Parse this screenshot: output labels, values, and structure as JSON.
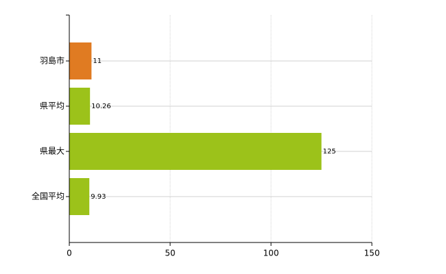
{
  "chart_data": {
    "type": "hbar",
    "categories": [
      "羽島市",
      "県平均",
      "県最大",
      "全国平均"
    ],
    "values": [
      11,
      10.26,
      125,
      9.93
    ],
    "colors": [
      "#e07b22",
      "#9cc21a",
      "#9cc21a",
      "#9cc21a"
    ],
    "xlim": [
      0,
      150
    ],
    "xticks": [
      0,
      50,
      100,
      150
    ],
    "grid": true
  }
}
